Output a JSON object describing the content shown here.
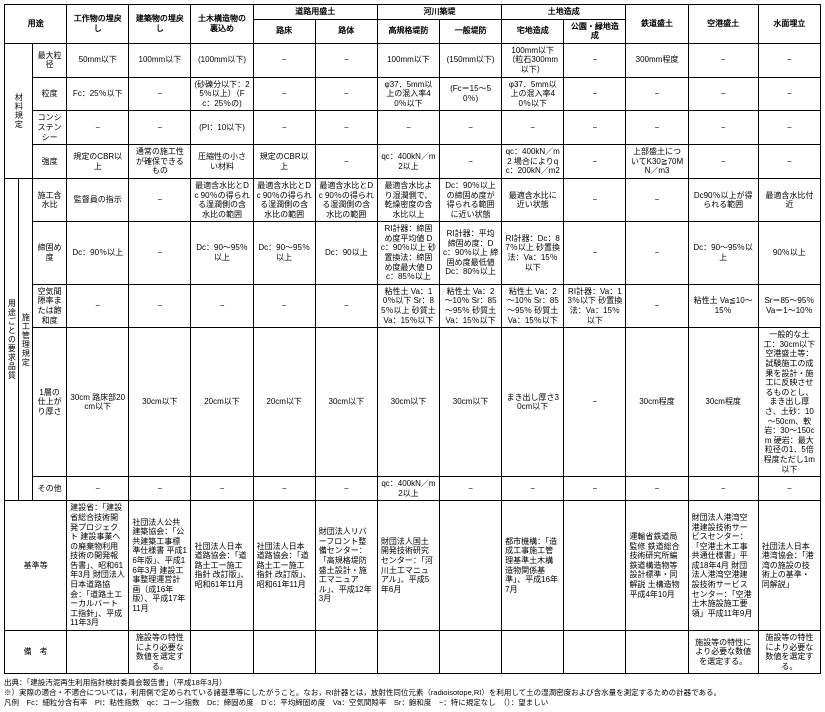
{
  "headers": {
    "row1": [
      "用途",
      "工作物の埋戻し",
      "建築物の埋戻し",
      "土木構造物の裏込め",
      "道路用盛土",
      "",
      "河川築堤",
      "",
      "土地造成",
      "",
      "鉄道盛土",
      "空港盛土",
      "水面埋立"
    ],
    "row2_roadA": "路床",
    "row2_roadB": "路体",
    "row2_riverA": "高規格堤防",
    "row2_riverB": "一般堤防",
    "row2_landA": "宅地造成",
    "row2_landB": "公園・緑地造成"
  },
  "group_material": "材料規定",
  "group_usage": "用途ごとの要求品質",
  "group_construction": "施工管理規定",
  "rows": {
    "max_grain": {
      "label": "最大粒径",
      "c": [
        "50mm以下",
        "100mm以下",
        "(100mm以下)",
        "−",
        "−",
        "100mm以下",
        "(150mm以下)",
        "100mm以下（粒石300mm以下）",
        "−",
        "300mm程度",
        "−",
        "−"
      ]
    },
    "grain": {
      "label": "粒度",
      "c": [
        "Fc：25％以下",
        "−",
        "(砂礫分以下：25％以上）（Fc：25％の)",
        "−",
        "−",
        "φ37．5mm以上の混入率40％以下",
        "(Fc＝15～50％)",
        "φ37．5mm以上の混入率40％以下",
        "−",
        "−",
        "−",
        "−"
      ]
    },
    "consist": {
      "label": "コンシステンシー",
      "c": [
        "−",
        "−",
        "(PI：10以下)",
        "−",
        "−",
        "−",
        "−",
        "−",
        "−",
        "−",
        "−",
        "−"
      ]
    },
    "strength": {
      "label": "強度",
      "c": [
        "規定のCBR以上",
        "通常の施工性が確保できるもの",
        "圧縮性の小さい材料",
        "規定のCBR以上",
        "−",
        "qc：400kN／m2以上",
        "−",
        "qc：400kN／m2 場合によりqc：200kN／m2",
        "−",
        "上部盛土についてK30≧70MN／m3",
        "−",
        "−"
      ]
    },
    "water": {
      "label": "施工含水比",
      "c": [
        "監督員の指示",
        "−",
        "最適含水比とDc 90％の得られる湿潤側の含水比の範囲",
        "最適含水比とDc 90％の得られる湿潤側の含水比の範囲",
        "最適含水比とDc 90％の得られる湿潤側の含水比の範囲",
        "最適含水比より湿潤側で、乾燥密度の含水比以上",
        "Dc：90％以上の締固め度が得られる範囲に近い状態",
        "最適含水比に近い状態",
        "−",
        "−",
        "Dc90％以上が得られる範囲",
        "最適含水比付近"
      ]
    },
    "compact": {
      "label": "締固め度",
      "c": [
        "Dc：90％以上",
        "−",
        "Dc：90～95％以上",
        "Dc：90～95％以上",
        "Dc：90以上",
        "RI計器：締固め度平均値 Dc：90％以上 砂置換法：締固め度最大値 Dc：85％以上",
        "RI計器：平均締固め度：Dc：90％以上 締固め度最低値 Dc：80％以上",
        "RI計器：Dc：87％以上 砂置換法：Va：15％以下",
        "−",
        "−",
        "Dc：90～95％以上",
        "90％以上"
      ]
    },
    "voids": {
      "label": "空気間隙率または飽和度",
      "c": [
        "−",
        "−",
        "−",
        "−",
        "−",
        "粘性土 Va：10％以下 Sr：85％以上 砂質土 Va：15％以下",
        "粘性土 Va：2～10％ Sr：85～95％ 砂質土 Va：15％以下",
        "粘性土 Va：2～10％ Sr：85～95％ 砂質土 Va：15％以下",
        "RI計器：Va：13％以下 砂置換法：Va：15％以下",
        "−",
        "粘性土 Va≦10～15％",
        "Sr＝85～95％ Va＝1～10％"
      ]
    },
    "lift": {
      "label": "1層の仕上がり厚さ",
      "c": [
        "30cm 路床部20cm以下",
        "30cm以下",
        "20cm以下",
        "20cm以下",
        "30cm以下",
        "30cm以下",
        "30cm以下",
        "まき出し厚さ30cm以下",
        "−",
        "30cm程度",
        "30cm程度",
        "一般的な土工：30cm以下 空港盛土等：試験施工の成果を設計・施工に反映させるものとし、まき出し厚さ、土砂：10～50cm、軟岩：30～150cm 硬岩：最大粒径の1．5倍程度ただし1m以下"
      ]
    },
    "other": {
      "label": "その他",
      "c": [
        "−",
        "−",
        "−",
        "−",
        "−",
        "qc：400kN／m2以上",
        "−",
        "−",
        "−",
        "−",
        "−",
        "−"
      ]
    },
    "standard": {
      "label": "基準等",
      "c": [
        "建設省：「建設省総合技術開発プロジェクト 建設事業への廃棄物利用技術の開発報告書」、昭和61年3月 財団法人日本道路協会：「道路土エーカルバート工指針」、平成11年3月",
        "社団法人公共建築協会：「公共建築工事標準仕様書 平成16年版」、平成16年3月 建設工事整理運営計画（成16年版）、平成17年11月",
        "社団法人日本道路協会：「道路土工ー施工指針 改訂版」、昭和61年11月",
        "社団法人日本道路協会：「道路土工ー施工指針 改訂版」、昭和61年11月",
        "財団法人リバーフロント整備センター：「高規格堤防盛土設計・施工マニュアル」、平成12年3月",
        "財団法人国土開発技術研究センター：「河川土工マニュアル」、平成5年6月",
        "",
        "都市機構：「造成工事施工管理基準土木構造物関係基準」、平成16年7月",
        "",
        "運輸省鉄道局監修 鉄道総合技術研究所編鉄道構造物等設計標準・同解説 土構造物 平成4年10月",
        "財団法人港湾空港建設技術サービスセンター：「空港土木工事共通仕様書」平成18年4月 財団法人港湾空港建設技術サービスセンター：「空港土木施設施工要領」平成11年9月",
        "社団法人日本港湾協会：「港湾の施設の技術上の基準・同解説」"
      ]
    },
    "remark": {
      "label": "備　考",
      "c": [
        "",
        "施設等の特性により必要な数値を選定する。",
        "",
        "",
        "",
        "",
        "",
        "",
        "",
        "",
        "施設等の特性により必要な数値を選定する。",
        "施設等の特性により必要な数値を選定する。"
      ]
    }
  },
  "footnotes": [
    "出典：「建設汚泥再生利用指針検討委員会報告書」（平成18年3月）",
    "※）実際の適合・不適合については，利用側で定められている諸基準等にしたがうこと。なお，RI計器とは，放射性同位元素（radioisotope,RI）を利用して土の湿潤密度および含水量を測定するための計器である。",
    "凡例　Fc：細粒分含有率　PI：粘性指数　qc：コーン指数　Dc：締固め度　D´c：平均締固め度　Va：空気間隙率　Sr：飽和度　−：特に規定なし　（）：望ましい"
  ]
}
